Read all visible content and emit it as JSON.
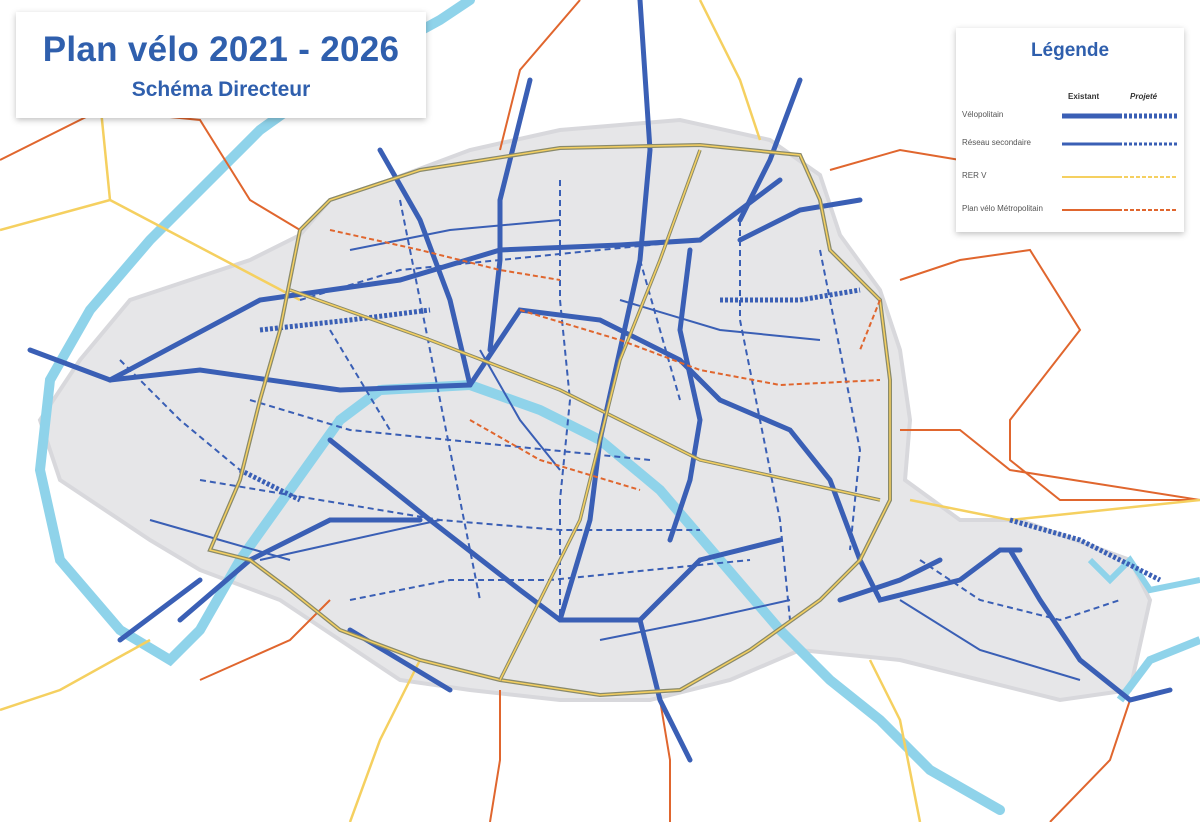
{
  "header": {
    "title": "Plan vélo 2021 - 2026",
    "subtitle": "Schéma Directeur"
  },
  "legend": {
    "title": "Légende",
    "col_existing": "Existant",
    "col_projected": "Projeté",
    "items": [
      {
        "label": "Vélopolitain",
        "color": "#3a5fb5",
        "style": "thick"
      },
      {
        "label": "Réseau secondaire",
        "color": "#3a5fb5",
        "style": "medium"
      },
      {
        "label": "RER V",
        "color": "#f5d060",
        "style": "thin"
      },
      {
        "label": "Plan vélo Métropolitain",
        "color": "#e0662e",
        "style": "thin"
      }
    ]
  },
  "colors": {
    "city_fill": "#e6e6e8",
    "river": "#8fd3ea",
    "velopolitain": "#3a5fb5",
    "rer_v": "#f5d060",
    "metropolitain": "#e0662e",
    "boundary": "#b0b0b0"
  }
}
